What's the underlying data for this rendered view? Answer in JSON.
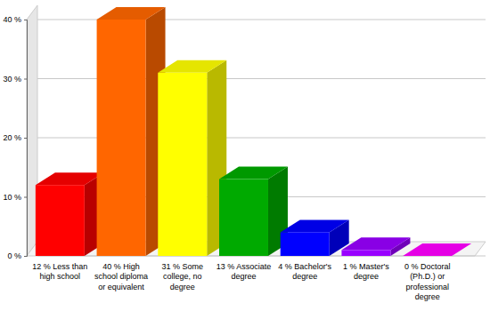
{
  "chart_data": {
    "type": "bar",
    "categories": [
      "12 % Less than high school",
      "40 % High school diploma or equivalent",
      "31 % Some college, no degree",
      "13 % Associate degree",
      "4 % Bachelor's degree",
      "1 % Master's degree",
      "0 % Doctoral (Ph.D.) or professional degree"
    ],
    "values": [
      12,
      40,
      31,
      13,
      4,
      1,
      0
    ],
    "colors": [
      "#ff0000",
      "#ff6600",
      "#ffff00",
      "#00aa00",
      "#0000ff",
      "#9900ff",
      "#ff00ff"
    ],
    "ylim": [
      0,
      40
    ],
    "yticks": [
      {
        "value": 0,
        "label": "0 %"
      },
      {
        "value": 10,
        "label": "10 %"
      },
      {
        "value": 20,
        "label": "20 %"
      },
      {
        "value": 30,
        "label": "30 %"
      },
      {
        "value": 40,
        "label": "40 %"
      }
    ],
    "grid": true
  }
}
